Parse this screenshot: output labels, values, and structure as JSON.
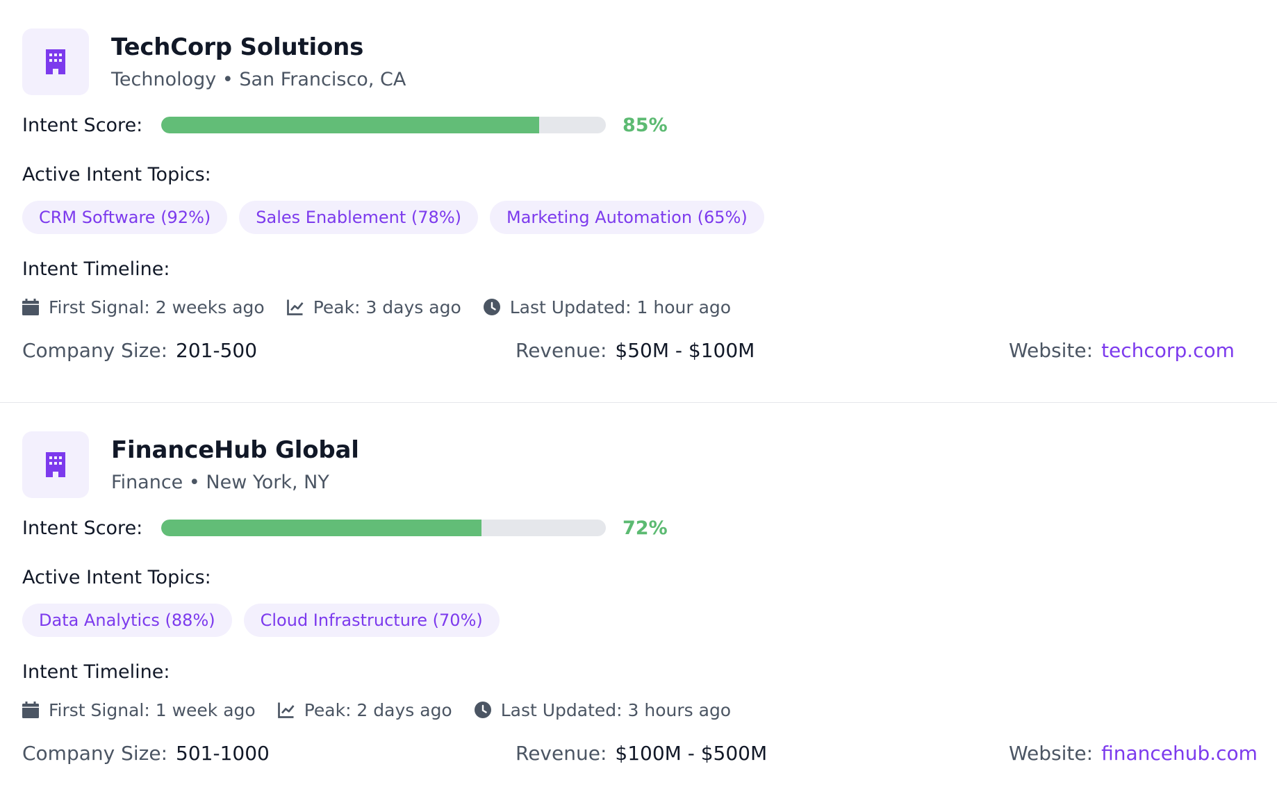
{
  "colors": {
    "accent": "#7c3aed",
    "accent_bg": "#f3f0fd",
    "score_green": "#62bd77",
    "track_gray": "#e5e7eb"
  },
  "labels": {
    "intent_score": "Intent Score:",
    "active_topics": "Active Intent Topics:",
    "intent_timeline": "Intent Timeline:",
    "company_size": "Company Size:",
    "revenue": "Revenue:",
    "website": "Website:"
  },
  "icons": {
    "logo": "building-icon",
    "first_signal": "calendar-icon",
    "peak": "chart-line-icon",
    "last_updated": "clock-icon"
  },
  "companies": [
    {
      "name": "TechCorp Solutions",
      "meta": "Technology • San Francisco, CA",
      "score": 85,
      "score_text": "85%",
      "topics": [
        "CRM Software (92%)",
        "Sales Enablement (78%)",
        "Marketing Automation (65%)"
      ],
      "first_signal": "First Signal: 2 weeks ago",
      "peak": "Peak: 3 days ago",
      "last_updated": "Last Updated: 1 hour ago",
      "size": "201-500",
      "revenue": "$50M - $100M",
      "website": "techcorp.com"
    },
    {
      "name": "FinanceHub Global",
      "meta": "Finance • New York, NY",
      "score": 72,
      "score_text": "72%",
      "topics": [
        "Data Analytics (88%)",
        "Cloud Infrastructure (70%)"
      ],
      "first_signal": "First Signal: 1 week ago",
      "peak": "Peak: 2 days ago",
      "last_updated": "Last Updated: 3 hours ago",
      "size": "501-1000",
      "revenue": "$100M - $500M",
      "website": "financehub.com"
    }
  ]
}
